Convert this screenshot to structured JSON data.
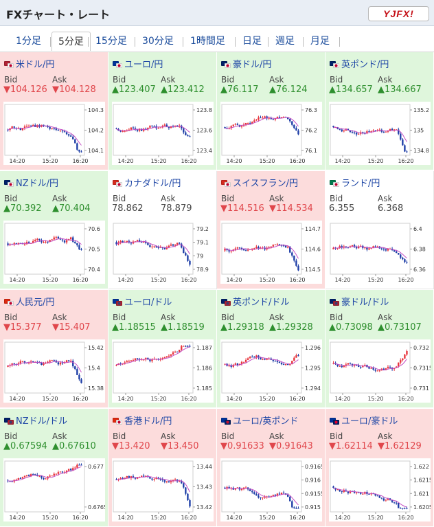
{
  "header": {
    "title": "FXチャート・レート",
    "logo": "YJFX!"
  },
  "tabs": [
    "1分足",
    "5分足",
    "15分足",
    "30分足",
    "1時間足",
    "日足",
    "週足",
    "月足"
  ],
  "active_tab": "5分足",
  "labels": {
    "bid": "Bid",
    "ask": "Ask"
  },
  "time_labels": [
    "14:20",
    "15:20",
    "16:20"
  ],
  "colors": {
    "down_bg": "#fcdcdc",
    "up_bg": "#dff6dc",
    "down_text": "#e0464b",
    "up_text": "#2e8f2e",
    "candle_up": "#e8343c",
    "candle_down": "#1f3fa7",
    "ma_line": "#c44fc4"
  },
  "pairs": [
    {
      "name": "米ドル/円",
      "bid": "▼104.126",
      "ask": "▼104.128",
      "trend": "down",
      "flags": [
        "us-flag",
        "jp-flag"
      ],
      "y_labels": [
        "104.3",
        "104.2",
        "104.1"
      ]
    },
    {
      "name": "ユーロ/円",
      "bid": "▲123.407",
      "ask": "▲123.412",
      "trend": "up",
      "flags": [
        "eu-flag",
        "jp-flag"
      ],
      "y_labels": [
        "123.8",
        "123.6",
        "123.4"
      ]
    },
    {
      "name": "豪ドル/円",
      "bid": "▲76.117",
      "ask": "▲76.124",
      "trend": "up",
      "flags": [
        "au-flag",
        "jp-flag"
      ],
      "y_labels": [
        "76.3",
        "76.2",
        "76.1"
      ]
    },
    {
      "name": "英ポンド/円",
      "bid": "▲134.657",
      "ask": "▲134.667",
      "trend": "up",
      "flags": [
        "gb-flag",
        "jp-flag"
      ],
      "y_labels": [
        "135.2",
        "135",
        "134.8"
      ]
    },
    {
      "name": "NZドル/円",
      "bid": "▲70.392",
      "ask": "▲70.404",
      "trend": "up",
      "flags": [
        "nz-flag",
        "jp-flag"
      ],
      "y_labels": [
        "70.6",
        "70.5",
        "70.4"
      ]
    },
    {
      "name": "カナダドル/円",
      "bid": "78.862",
      "ask": "78.879",
      "trend": "flat",
      "flags": [
        "ca-flag",
        "jp-flag"
      ],
      "y_labels": [
        "79.2",
        "79.1",
        "79",
        "78.9"
      ]
    },
    {
      "name": "スイスフラン/円",
      "bid": "▼114.516",
      "ask": "▼114.534",
      "trend": "down",
      "flags": [
        "ch-flag",
        "jp-flag"
      ],
      "y_labels": [
        "114.7",
        "114.6",
        "114.5"
      ]
    },
    {
      "name": "ランド/円",
      "bid": "6.355",
      "ask": "6.368",
      "trend": "flat",
      "flags": [
        "za-flag",
        "jp-flag"
      ],
      "y_labels": [
        "6.4",
        "6.38",
        "6.36"
      ]
    },
    {
      "name": "人民元/円",
      "bid": "▼15.377",
      "ask": "▼15.407",
      "trend": "down",
      "flags": [
        "cn-flag",
        "jp-flag"
      ],
      "y_labels": [
        "15.42",
        "15.4",
        "15.38"
      ]
    },
    {
      "name": "ユーロ/ドル",
      "bid": "▲1.18515",
      "ask": "▲1.18519",
      "trend": "up",
      "flags": [
        "eu-flag",
        "us-flag"
      ],
      "y_labels": [
        "1.187",
        "1.186",
        "1.185"
      ]
    },
    {
      "name": "英ポンド/ドル",
      "bid": "▲1.29318",
      "ask": "▲1.29328",
      "trend": "up",
      "flags": [
        "gb-flag",
        "us-flag"
      ],
      "y_labels": [
        "1.296",
        "1.295",
        "1.294"
      ]
    },
    {
      "name": "豪ドル/ドル",
      "bid": "▲0.73098",
      "ask": "▲0.73107",
      "trend": "up",
      "flags": [
        "au-flag",
        "us-flag"
      ],
      "y_labels": [
        "0.732",
        "0.7315",
        "0.731"
      ]
    },
    {
      "name": "NZドル/ドル",
      "bid": "▲0.67594",
      "ask": "▲0.67610",
      "trend": "up",
      "flags": [
        "nz-flag",
        "us-flag"
      ],
      "y_labels": [
        "0.677",
        "0.6765"
      ]
    },
    {
      "name": "香港ドル/円",
      "bid": "▼13.420",
      "ask": "▼13.450",
      "trend": "down",
      "flags": [
        "hk-flag",
        "jp-flag"
      ],
      "y_labels": [
        "13.44",
        "13.43",
        "13.42"
      ]
    },
    {
      "name": "ユーロ/英ポンド",
      "bid": "▼0.91633",
      "ask": "▼0.91643",
      "trend": "down",
      "flags": [
        "eu-flag",
        "gb-flag"
      ],
      "y_labels": [
        "0.9165",
        "0.916",
        "0.9155",
        "0.915"
      ]
    },
    {
      "name": "ユーロ/豪ドル",
      "bid": "▼1.62114",
      "ask": "▼1.62129",
      "trend": "down",
      "flags": [
        "eu-flag",
        "au-flag"
      ],
      "y_labels": [
        "1.622",
        "1.6215",
        "1.621",
        "1.6205"
      ]
    }
  ]
}
